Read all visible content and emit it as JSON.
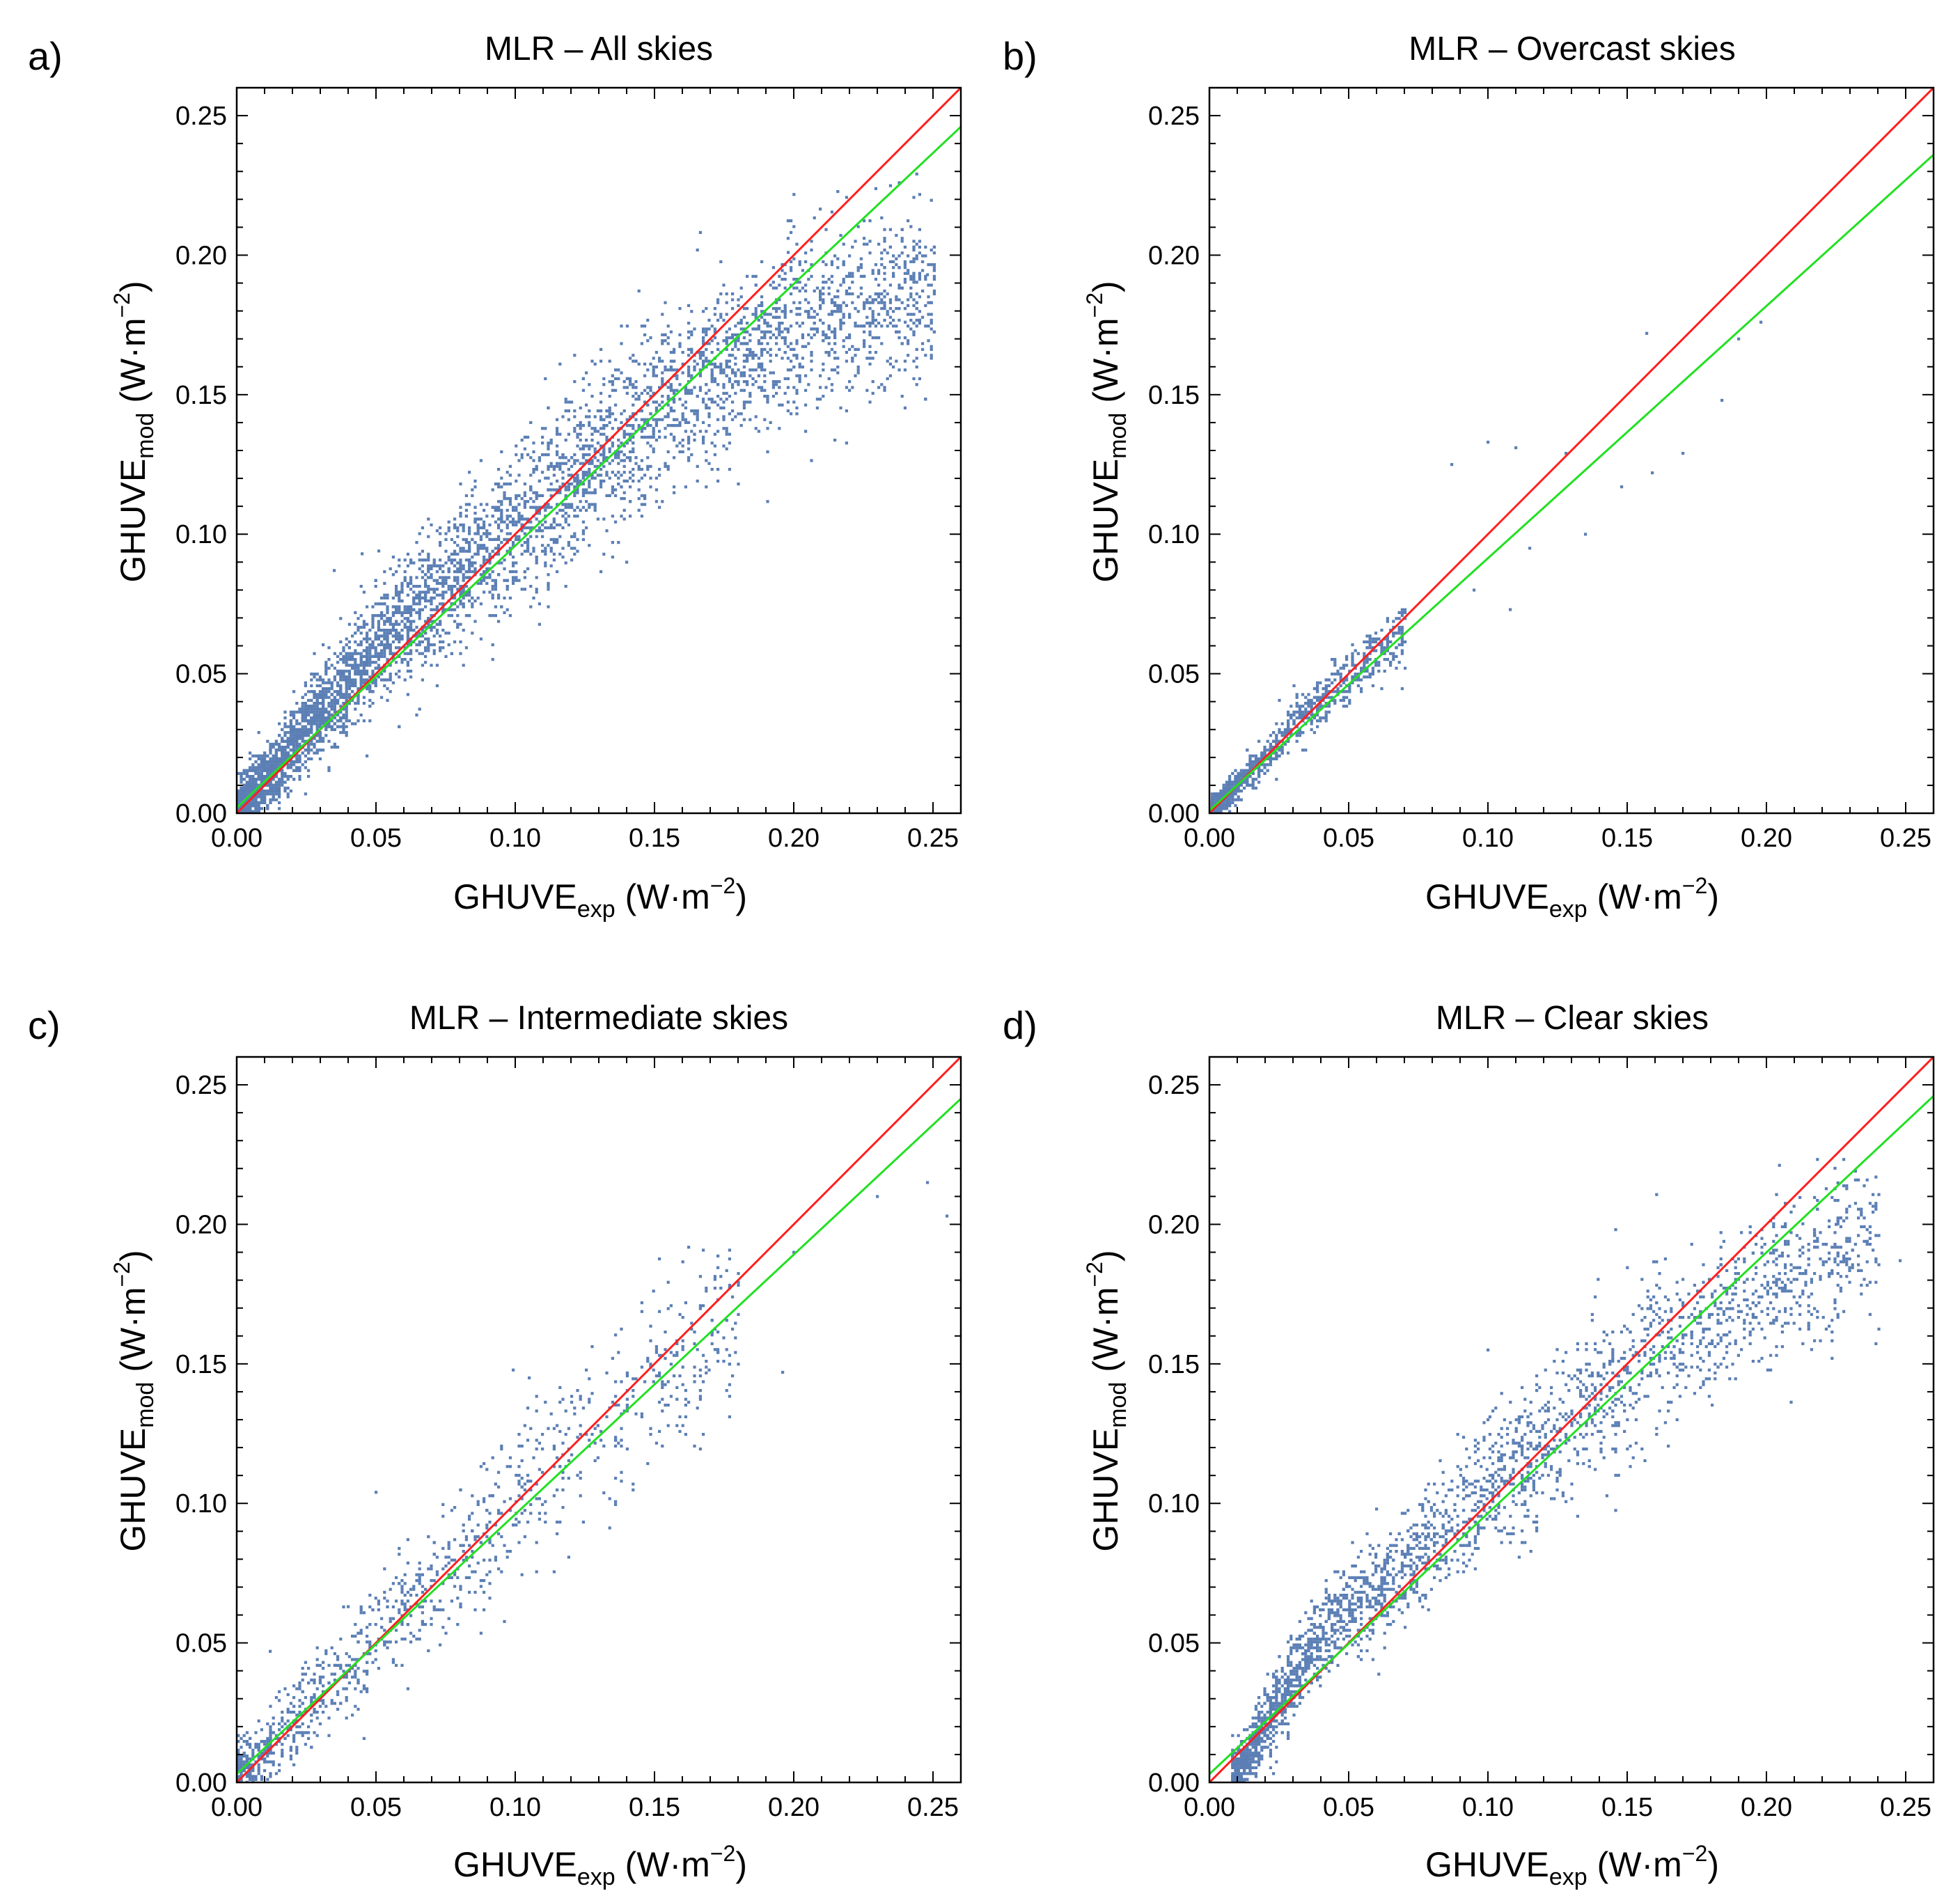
{
  "figure": {
    "panels": [
      {
        "letter": "a)",
        "title": "MLR – All skies",
        "xlabel": {
          "main": "GHUVE",
          "sub": "exp",
          "unit_pre": "(W·m",
          "unit_sup": "−2",
          "unit_post": ")"
        },
        "ylabel": {
          "main": "GHUVE",
          "sub": "mod",
          "unit_pre": "(W·m",
          "unit_sup": "−2",
          "unit_post": ")"
        }
      },
      {
        "letter": "b)",
        "title": "MLR – Overcast skies",
        "xlabel": {
          "main": "GHUVE",
          "sub": "exp",
          "unit_pre": "(W·m",
          "unit_sup": "−2",
          "unit_post": ")"
        },
        "ylabel": {
          "main": "GHUVE",
          "sub": "mod",
          "unit_pre": "(W·m",
          "unit_sup": "−2",
          "unit_post": ")"
        }
      },
      {
        "letter": "c)",
        "title": "MLR – Intermediate skies",
        "xlabel": {
          "main": "GHUVE",
          "sub": "exp",
          "unit_pre": "(W·m",
          "unit_sup": "−2",
          "unit_post": ")"
        },
        "ylabel": {
          "main": "GHUVE",
          "sub": "mod",
          "unit_pre": "(W·m",
          "unit_sup": "−2",
          "unit_post": ")"
        }
      },
      {
        "letter": "d)",
        "title": "MLR – Clear skies",
        "xlabel": {
          "main": "GHUVE",
          "sub": "exp",
          "unit_pre": "(W·m",
          "unit_sup": "−2",
          "unit_post": ")"
        },
        "ylabel": {
          "main": "GHUVE",
          "sub": "mod",
          "unit_pre": "(W·m",
          "unit_sup": "−2",
          "unit_post": ")"
        }
      }
    ]
  },
  "colors": {
    "points": "#5b7fb5",
    "identity_line": "#ff1f1f",
    "fit_line": "#22e022",
    "frame": "#000000"
  },
  "chart_data": [
    {
      "type": "scatter",
      "title": "MLR – All skies",
      "xlabel": "GHUVE_exp (W·m^-2)",
      "ylabel": "GHUVE_mod (W·m^-2)",
      "xlim": [
        0,
        0.26
      ],
      "ylim": [
        0,
        0.26
      ],
      "xticks": [
        "0.00",
        "0.05",
        "0.10",
        "0.15",
        "0.20",
        "0.25"
      ],
      "yticks": [
        "0.00",
        "0.05",
        "0.10",
        "0.15",
        "0.20",
        "0.25"
      ],
      "grid": false,
      "lines": [
        {
          "kind": "identity",
          "x": [
            0,
            0.26
          ],
          "y": [
            0,
            0.26
          ]
        },
        {
          "kind": "fit",
          "x": [
            0,
            0.26
          ],
          "y": [
            0.002,
            0.246
          ]
        }
      ],
      "point_density": {
        "x_range": [
          0.0,
          0.25
        ],
        "trend": [
          [
            0.0,
            0.0
          ],
          [
            0.02,
            0.025
          ],
          [
            0.05,
            0.06
          ],
          [
            0.1,
            0.103
          ],
          [
            0.15,
            0.145
          ],
          [
            0.2,
            0.175
          ],
          [
            0.25,
            0.19
          ]
        ],
        "spread": 0.012,
        "count": 4800,
        "outliers": [
          [
            0.045,
            0.093
          ],
          [
            0.051,
            0.094
          ],
          [
            0.035,
            0.087
          ],
          [
            0.14,
            0.09
          ],
          [
            0.198,
            0.201
          ],
          [
            0.248,
            0.193
          ],
          [
            0.24,
            0.176
          ]
        ]
      }
    },
    {
      "type": "scatter",
      "title": "MLR – Overcast skies",
      "xlabel": "GHUVE_exp (W·m^-2)",
      "ylabel": "GHUVE_mod (W·m^-2)",
      "xlim": [
        0,
        0.26
      ],
      "ylim": [
        0,
        0.26
      ],
      "xticks": [
        "0.00",
        "0.05",
        "0.10",
        "0.15",
        "0.20",
        "0.25"
      ],
      "yticks": [
        "0.00",
        "0.05",
        "0.10",
        "0.15",
        "0.20",
        "0.25"
      ],
      "grid": false,
      "lines": [
        {
          "kind": "identity",
          "x": [
            0,
            0.26
          ],
          "y": [
            0,
            0.26
          ]
        },
        {
          "kind": "fit",
          "x": [
            0,
            0.26
          ],
          "y": [
            0.001,
            0.236
          ]
        }
      ],
      "point_density": {
        "x_range": [
          0.0,
          0.07
        ],
        "trend": [
          [
            0.0,
            0.0
          ],
          [
            0.02,
            0.022
          ],
          [
            0.04,
            0.042
          ],
          [
            0.07,
            0.066
          ]
        ],
        "spread": 0.006,
        "count": 900,
        "outliers": [
          [
            0.087,
            0.125
          ],
          [
            0.1,
            0.133
          ],
          [
            0.11,
            0.131
          ],
          [
            0.128,
            0.129
          ],
          [
            0.135,
            0.1
          ],
          [
            0.148,
            0.117
          ],
          [
            0.157,
            0.172
          ],
          [
            0.159,
            0.122
          ],
          [
            0.17,
            0.129
          ],
          [
            0.184,
            0.148
          ],
          [
            0.19,
            0.17
          ],
          [
            0.198,
            0.176
          ],
          [
            0.115,
            0.095
          ],
          [
            0.095,
            0.08
          ],
          [
            0.108,
            0.073
          ]
        ]
      }
    },
    {
      "type": "scatter",
      "title": "MLR – Intermediate skies",
      "xlabel": "GHUVE_exp (W·m^-2)",
      "ylabel": "GHUVE_mod (W·m^-2)",
      "xlim": [
        0,
        0.26
      ],
      "ylim": [
        0,
        0.26
      ],
      "xticks": [
        "0.00",
        "0.05",
        "0.10",
        "0.15",
        "0.20",
        "0.25"
      ],
      "yticks": [
        "0.00",
        "0.05",
        "0.10",
        "0.15",
        "0.20",
        "0.25"
      ],
      "grid": false,
      "lines": [
        {
          "kind": "identity",
          "x": [
            0,
            0.26
          ],
          "y": [
            0,
            0.26
          ]
        },
        {
          "kind": "fit",
          "x": [
            0,
            0.26
          ],
          "y": [
            0.003,
            0.245
          ]
        }
      ],
      "point_density": {
        "x_range": [
          0.0,
          0.18
        ],
        "trend": [
          [
            0.0,
            0.002
          ],
          [
            0.05,
            0.053
          ],
          [
            0.1,
            0.1
          ],
          [
            0.15,
            0.145
          ],
          [
            0.18,
            0.17
          ]
        ],
        "spread": 0.012,
        "count": 1100,
        "outliers": [
          [
            0.05,
            0.104
          ],
          [
            0.105,
            0.145
          ],
          [
            0.196,
            0.147
          ],
          [
            0.2,
            0.19
          ],
          [
            0.23,
            0.21
          ],
          [
            0.248,
            0.215
          ],
          [
            0.255,
            0.203
          ],
          [
            0.04,
            0.063
          ],
          [
            0.012,
            0.047
          ]
        ]
      }
    },
    {
      "type": "scatter",
      "title": "MLR – Clear skies",
      "xlabel": "GHUVE_exp (W·m^-2)",
      "ylabel": "GHUVE_mod (W·m^-2)",
      "xlim": [
        0,
        0.26
      ],
      "ylim": [
        0,
        0.26
      ],
      "xticks": [
        "0.00",
        "0.05",
        "0.10",
        "0.15",
        "0.20",
        "0.25"
      ],
      "yticks": [
        "0.00",
        "0.05",
        "0.10",
        "0.15",
        "0.20",
        "0.25"
      ],
      "grid": false,
      "lines": [
        {
          "kind": "identity",
          "x": [
            0,
            0.26
          ],
          "y": [
            0,
            0.26
          ]
        },
        {
          "kind": "fit",
          "x": [
            0,
            0.26
          ],
          "y": [
            0.003,
            0.246
          ]
        }
      ],
      "point_density": {
        "x_range": [
          0.008,
          0.24
        ],
        "trend": [
          [
            0.008,
            0.0
          ],
          [
            0.02,
            0.022
          ],
          [
            0.04,
            0.055
          ],
          [
            0.06,
            0.07
          ],
          [
            0.1,
            0.105
          ],
          [
            0.15,
            0.148
          ],
          [
            0.2,
            0.178
          ],
          [
            0.24,
            0.195
          ]
        ],
        "spread": 0.011,
        "count": 2600,
        "outliers": [
          [
            0.06,
            0.098
          ],
          [
            0.1,
            0.13
          ],
          [
            0.1,
            0.155
          ],
          [
            0.248,
            0.187
          ],
          [
            0.225,
            0.2
          ]
        ]
      }
    }
  ]
}
